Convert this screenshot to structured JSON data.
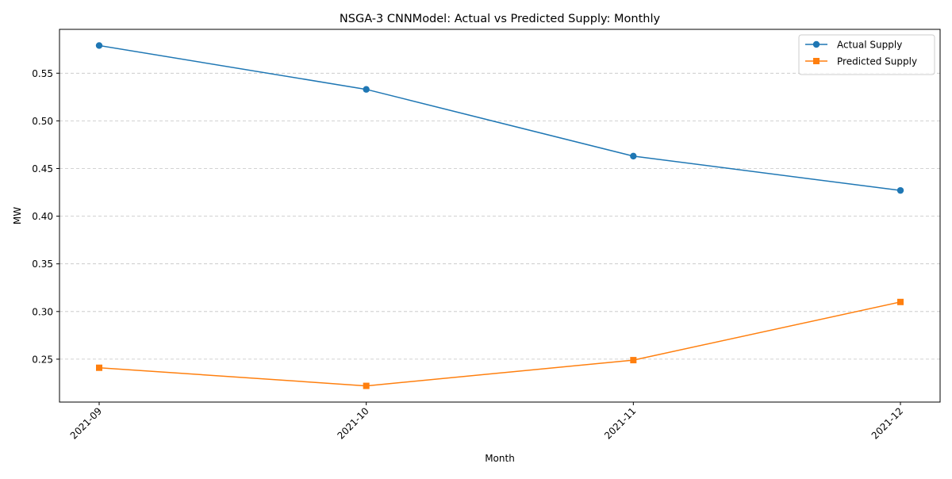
{
  "chart_data": {
    "type": "line",
    "title": "NSGA-3 CNNModel: Actual vs Predicted Supply: Monthly",
    "xlabel": "Month",
    "ylabel": "MW",
    "categories": [
      "2021-09",
      "2021-10",
      "2021-11",
      "2021-12"
    ],
    "series": [
      {
        "name": "Actual Supply",
        "values": [
          0.579,
          0.533,
          0.463,
          0.427
        ],
        "color": "#1f77b4",
        "marker": "circle"
      },
      {
        "name": "Predicted Supply",
        "values": [
          0.241,
          0.222,
          0.249,
          0.31
        ],
        "color": "#ff7f0e",
        "marker": "square"
      }
    ],
    "ylim": [
      0.205,
      0.596
    ],
    "yticks": [
      0.25,
      0.3,
      0.35,
      0.4,
      0.45,
      0.5,
      0.55
    ],
    "ytick_labels": [
      "0.25",
      "0.30",
      "0.35",
      "0.40",
      "0.45",
      "0.50",
      "0.55"
    ],
    "grid": "y-dashed",
    "legend_position": "top-right"
  }
}
